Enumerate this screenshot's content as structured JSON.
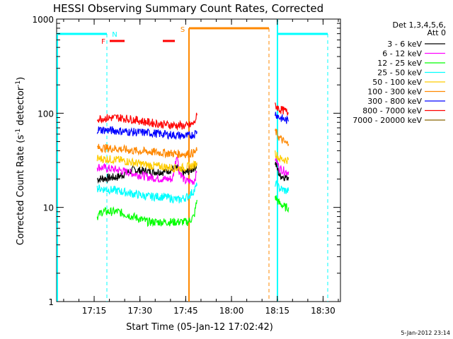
{
  "chart_data": {
    "type": "line",
    "title": "HESSI Observing Summary Count Rates, Corrected",
    "xlabel": "Start Time (05-Jan-12 17:02:42)",
    "ylabel": "Corrected Count Rate (s",
    "ylabel_sup1": "-1",
    "ylabel_mid": " detector",
    "ylabel_sup2": "-1",
    "ylabel_end": ")",
    "yscale": "log",
    "ylim": [
      1,
      1000
    ],
    "xlim_minutes": [
      0,
      93
    ],
    "x_ticks": [
      {
        "m": 12.3,
        "label": "17:15"
      },
      {
        "m": 27.3,
        "label": "17:30"
      },
      {
        "m": 42.3,
        "label": "17:45"
      },
      {
        "m": 57.3,
        "label": "18:00"
      },
      {
        "m": 72.3,
        "label": "18:15"
      },
      {
        "m": 87.3,
        "label": "18:30"
      }
    ],
    "y_ticks": [
      {
        "v": 1,
        "label": "1"
      },
      {
        "v": 10,
        "label": "10"
      },
      {
        "v": 100,
        "label": "100"
      },
      {
        "v": 1000,
        "label": "1000"
      }
    ],
    "legend_title": [
      "Det 1,3,4,5,6,",
      "Att 0"
    ],
    "legend_position": "top-right",
    "series": [
      {
        "name": "3 - 6 keV",
        "color": "#000000",
        "seg1": [
          [
            13.3,
            20
          ],
          [
            20,
            21
          ],
          [
            25,
            25
          ],
          [
            30,
            24
          ],
          [
            35,
            24
          ],
          [
            39,
            26
          ],
          [
            42,
            23
          ],
          [
            44,
            25
          ],
          [
            46,
            28
          ]
        ],
        "seg2": [
          [
            71.6,
            30
          ],
          [
            73,
            22
          ],
          [
            75,
            21
          ],
          [
            76,
            21
          ]
        ]
      },
      {
        "name": "6 - 12 keV",
        "color": "#ff00ff",
        "seg1": [
          [
            13.3,
            27
          ],
          [
            20,
            25
          ],
          [
            25,
            23
          ],
          [
            30,
            21
          ],
          [
            35,
            20
          ],
          [
            38,
            20
          ],
          [
            39.5,
            38
          ],
          [
            40,
            25
          ],
          [
            42,
            19
          ],
          [
            45,
            19
          ],
          [
            46,
            24
          ]
        ],
        "seg2": [
          [
            71.6,
            34
          ],
          [
            73,
            26
          ],
          [
            75,
            24
          ],
          [
            76,
            24
          ]
        ]
      },
      {
        "name": "12 - 25 keV",
        "color": "#00ff00",
        "seg1": [
          [
            13.3,
            8
          ],
          [
            15,
            9
          ],
          [
            20,
            9
          ],
          [
            25,
            8
          ],
          [
            30,
            7
          ],
          [
            35,
            7
          ],
          [
            40,
            7
          ],
          [
            43,
            7
          ],
          [
            45,
            8
          ],
          [
            46,
            12
          ]
        ],
        "seg2": [
          [
            71.6,
            13
          ],
          [
            73,
            11
          ],
          [
            75,
            10
          ],
          [
            76,
            10
          ]
        ]
      },
      {
        "name": "25 - 50 keV",
        "color": "#00ffff",
        "seg1": [
          [
            13.3,
            16
          ],
          [
            20,
            15
          ],
          [
            25,
            14
          ],
          [
            30,
            13
          ],
          [
            35,
            13
          ],
          [
            40,
            12
          ],
          [
            43,
            13
          ],
          [
            45,
            15
          ],
          [
            46,
            17
          ]
        ],
        "seg2": [
          [
            71.6,
            18
          ],
          [
            73,
            16
          ],
          [
            75,
            15
          ],
          [
            76,
            15
          ]
        ]
      },
      {
        "name": "50 - 100 keV",
        "color": "#ffcc00",
        "seg1": [
          [
            13.3,
            33
          ],
          [
            20,
            32
          ],
          [
            25,
            30
          ],
          [
            30,
            28
          ],
          [
            35,
            27
          ],
          [
            40,
            26
          ],
          [
            43,
            27
          ],
          [
            45,
            28
          ],
          [
            46,
            30
          ]
        ],
        "seg2": [
          [
            71.6,
            38
          ],
          [
            73,
            33
          ],
          [
            75,
            32
          ],
          [
            76,
            32
          ]
        ]
      },
      {
        "name": "100 - 300 keV",
        "color": "#ff8800",
        "seg1": [
          [
            13.3,
            43
          ],
          [
            20,
            42
          ],
          [
            25,
            40
          ],
          [
            30,
            39
          ],
          [
            35,
            38
          ],
          [
            40,
            37
          ],
          [
            43,
            37
          ],
          [
            45,
            38
          ],
          [
            46,
            40
          ]
        ],
        "seg2": [
          [
            71.6,
            65
          ],
          [
            73,
            55
          ],
          [
            75,
            48
          ],
          [
            76,
            47
          ]
        ]
      },
      {
        "name": "300 - 800 keV",
        "color": "#0000ff",
        "seg1": [
          [
            13.3,
            67
          ],
          [
            20,
            65
          ],
          [
            25,
            63
          ],
          [
            30,
            62
          ],
          [
            35,
            60
          ],
          [
            40,
            58
          ],
          [
            43,
            57
          ],
          [
            45,
            60
          ],
          [
            46,
            64
          ]
        ],
        "seg2": [
          [
            71.6,
            100
          ],
          [
            73,
            90
          ],
          [
            75,
            85
          ],
          [
            76,
            82
          ]
        ]
      },
      {
        "name": "800 - 7000 keV",
        "color": "#ff0000",
        "seg1": [
          [
            13.3,
            88
          ],
          [
            20,
            90
          ],
          [
            25,
            86
          ],
          [
            30,
            80
          ],
          [
            35,
            76
          ],
          [
            40,
            74
          ],
          [
            43,
            73
          ],
          [
            45,
            78
          ],
          [
            46,
            95
          ]
        ],
        "seg2": [
          [
            71.6,
            122
          ],
          [
            73,
            110
          ],
          [
            75,
            105
          ],
          [
            76,
            100
          ]
        ]
      },
      {
        "name": "7000 - 20000 keV",
        "color": "#886600",
        "seg1": [],
        "seg2": []
      }
    ],
    "flags": [
      {
        "label": "N",
        "color": "#00ffff",
        "m": 17.5
      },
      {
        "label": "F",
        "color": "#ff0000",
        "m": 16.6
      },
      {
        "label": "S",
        "color": "#ff8800",
        "m": 44.0
      }
    ],
    "timestamp": "5-Jan-2012 23:14"
  }
}
